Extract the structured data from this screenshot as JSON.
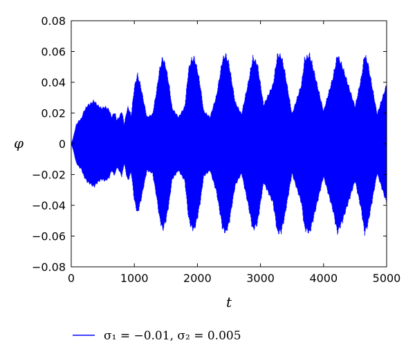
{
  "chart_data": {
    "type": "line",
    "title": "",
    "xlabel": "t",
    "ylabel": "φ",
    "xlim": [
      0,
      5000
    ],
    "ylim": [
      -0.08,
      0.08
    ],
    "x_ticks": [
      "0",
      "1000",
      "2000",
      "3000",
      "4000",
      "5000"
    ],
    "y_ticks": [
      "0.08",
      "0.06",
      "0.04",
      "0.02",
      "0",
      "−0.02",
      "−0.04",
      "−0.06",
      "−0.08"
    ],
    "grid": false,
    "legend": {
      "placement": "bottom-left",
      "label": "σ₁ = −0.01, σ₂ = 0.005"
    },
    "series": [
      {
        "name": "σ₁ = −0.01, σ₂ = 0.005",
        "color": "#0000ff",
        "style": "fast oscillation (filled envelope)",
        "envelope": {
          "t": [
            0,
            30,
            80,
            130,
            160,
            200,
            260,
            300,
            360,
            420,
            480,
            540,
            600,
            640,
            680,
            700,
            720,
            760,
            800,
            820,
            840,
            870,
            900,
            950,
            1000,
            1050,
            1100,
            1200,
            1290,
            1350,
            1400,
            1450,
            1500,
            1550,
            1600,
            1700,
            1800,
            1860,
            1900,
            1950,
            2000,
            2050,
            2100,
            2200,
            2300,
            2400,
            2450,
            2500,
            2600,
            2700,
            2800,
            2880,
            2950,
            3050,
            3200,
            3270,
            3330,
            3380,
            3500,
            3650,
            3700,
            3780,
            3830,
            4000,
            4150,
            4220,
            4300,
            4500,
            4600,
            4650,
            4700,
            4850,
            5000
          ],
          "amplitude": [
            0.0,
            0.004,
            0.013,
            0.016,
            0.017,
            0.022,
            0.026,
            0.027,
            0.029,
            0.026,
            0.024,
            0.025,
            0.023,
            0.018,
            0.021,
            0.02,
            0.016,
            0.018,
            0.022,
            0.018,
            0.013,
            0.02,
            0.025,
            0.019,
            0.038,
            0.047,
            0.039,
            0.018,
            0.02,
            0.035,
            0.05,
            0.058,
            0.052,
            0.04,
            0.024,
            0.018,
            0.025,
            0.05,
            0.056,
            0.058,
            0.05,
            0.038,
            0.022,
            0.018,
            0.032,
            0.057,
            0.06,
            0.054,
            0.028,
            0.02,
            0.04,
            0.058,
            0.054,
            0.026,
            0.04,
            0.06,
            0.059,
            0.05,
            0.02,
            0.04,
            0.057,
            0.06,
            0.052,
            0.022,
            0.045,
            0.06,
            0.052,
            0.025,
            0.045,
            0.06,
            0.055,
            0.02,
            0.04
          ]
        }
      }
    ]
  }
}
